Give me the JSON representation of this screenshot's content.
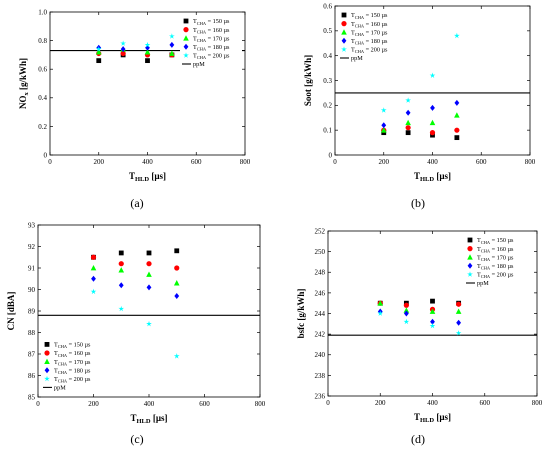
{
  "chart_data": [
    {
      "type": "scatter",
      "caption": "(a)",
      "xlabel_main": "T",
      "xlabel_sub": "HLD",
      "xlabel_unit": "[µs]",
      "ylabel_main": "NO",
      "ylabel_sub": "x",
      "ylabel_unit": "[g/kWh]",
      "xlim": [
        0,
        800
      ],
      "ylim": [
        0,
        1.0
      ],
      "xticks": [
        0,
        200,
        400,
        600,
        800
      ],
      "yticks": [
        0,
        0.2,
        0.4,
        0.6,
        0.8,
        1.0
      ],
      "ytick_labels": [
        "0",
        "0.2",
        "0.4",
        "0.6",
        "0.8",
        "1.0"
      ],
      "x": [
        200,
        300,
        400,
        500
      ],
      "series": [
        {
          "name": "T",
          "sub": "CHA",
          "suffix": " = 150 µs",
          "marker": "square",
          "color": "#000000",
          "values": [
            0.66,
            0.7,
            0.66,
            0.7
          ]
        },
        {
          "name": "T",
          "sub": "CHA",
          "suffix": " = 160 µs",
          "marker": "circle",
          "color": "#ff0000",
          "values": [
            0.71,
            0.71,
            0.7,
            0.7
          ]
        },
        {
          "name": "T",
          "sub": "CHA",
          "suffix": " = 170 µs",
          "marker": "triangle",
          "color": "#00ff00",
          "values": [
            0.72,
            0.74,
            0.72,
            0.71
          ]
        },
        {
          "name": "T",
          "sub": "CHA",
          "suffix": " = 180 µs",
          "marker": "diamond",
          "color": "#0000ff",
          "values": [
            0.75,
            0.74,
            0.75,
            0.77
          ]
        },
        {
          "name": "T",
          "sub": "CHA",
          "suffix": " = 200 µs",
          "marker": "star",
          "color": "#00ffff",
          "values": [
            0.74,
            0.78,
            0.77,
            0.83
          ]
        }
      ],
      "hline": {
        "name": "ppM",
        "value": 0.73
      },
      "legend": "top-right"
    },
    {
      "type": "scatter",
      "caption": "(b)",
      "xlabel_main": "T",
      "xlabel_sub": "HLD",
      "xlabel_unit": "[µs]",
      "ylabel_main": "Soot",
      "ylabel_sub": "",
      "ylabel_unit": "[g/kWh]",
      "xlim": [
        0,
        800
      ],
      "ylim": [
        0,
        0.6
      ],
      "xticks": [
        0,
        200,
        400,
        600,
        800
      ],
      "yticks": [
        0,
        0.1,
        0.2,
        0.3,
        0.4,
        0.5,
        0.6
      ],
      "ytick_labels": [
        "0",
        "0.1",
        "0.2",
        "0.3",
        "0.4",
        "0.5",
        "0.6"
      ],
      "x": [
        200,
        300,
        400,
        500
      ],
      "series": [
        {
          "name": "T",
          "sub": "CHA",
          "suffix": " = 150 µs",
          "marker": "square",
          "color": "#000000",
          "values": [
            0.09,
            0.09,
            0.08,
            0.07
          ]
        },
        {
          "name": "T",
          "sub": "CHA",
          "suffix": " = 160 µs",
          "marker": "circle",
          "color": "#ff0000",
          "values": [
            0.1,
            0.11,
            0.09,
            0.1
          ]
        },
        {
          "name": "T",
          "sub": "CHA",
          "suffix": " = 170 µs",
          "marker": "triangle",
          "color": "#00ff00",
          "values": [
            0.1,
            0.13,
            0.13,
            0.16
          ]
        },
        {
          "name": "T",
          "sub": "CHA",
          "suffix": " = 180 µs",
          "marker": "diamond",
          "color": "#0000ff",
          "values": [
            0.12,
            0.17,
            0.19,
            0.21
          ]
        },
        {
          "name": "T",
          "sub": "CHA",
          "suffix": " = 200 µs",
          "marker": "star",
          "color": "#00ffff",
          "values": [
            0.18,
            0.22,
            0.32,
            0.48
          ]
        }
      ],
      "hline": {
        "name": "ppM",
        "value": 0.25
      },
      "legend": "top-left"
    },
    {
      "type": "scatter",
      "caption": "(c)",
      "xlabel_main": "T",
      "xlabel_sub": "HLD",
      "xlabel_unit": "[µs]",
      "ylabel_main": "CN",
      "ylabel_sub": "",
      "ylabel_unit": "[dBA]",
      "xlim": [
        0,
        800
      ],
      "ylim": [
        85,
        93
      ],
      "xticks": [
        0,
        200,
        400,
        600,
        800
      ],
      "yticks": [
        85,
        86,
        87,
        88,
        89,
        90,
        91,
        92,
        93
      ],
      "ytick_labels": [
        "85",
        "86",
        "87",
        "88",
        "89",
        "90",
        "91",
        "92",
        "93"
      ],
      "x": [
        200,
        300,
        400,
        500
      ],
      "series": [
        {
          "name": "T",
          "sub": "CHA",
          "suffix": " = 150 µs",
          "marker": "square",
          "color": "#000000",
          "values": [
            91.5,
            91.7,
            91.7,
            91.8
          ]
        },
        {
          "name": "T",
          "sub": "CHA",
          "suffix": " = 160 µs",
          "marker": "circle",
          "color": "#ff0000",
          "values": [
            91.5,
            91.2,
            91.2,
            91.0
          ]
        },
        {
          "name": "T",
          "sub": "CHA",
          "suffix": " = 170 µs",
          "marker": "triangle",
          "color": "#00ff00",
          "values": [
            91.0,
            90.9,
            90.7,
            90.3
          ]
        },
        {
          "name": "T",
          "sub": "CHA",
          "suffix": " = 180 µs",
          "marker": "diamond",
          "color": "#0000ff",
          "values": [
            90.5,
            90.2,
            90.1,
            89.7
          ]
        },
        {
          "name": "T",
          "sub": "CHA",
          "suffix": " = 200 µs",
          "marker": "star",
          "color": "#00ffff",
          "values": [
            89.9,
            89.1,
            88.4,
            86.9
          ]
        }
      ],
      "hline": {
        "name": "ppM",
        "value": 88.8
      },
      "legend": "bottom-left"
    },
    {
      "type": "scatter",
      "caption": "(d)",
      "xlabel_main": "T",
      "xlabel_sub": "HLD",
      "xlabel_unit": "[µs]",
      "ylabel_main": "bsfc",
      "ylabel_sub": "",
      "ylabel_unit": "[g/kWh]",
      "xlim": [
        0,
        800
      ],
      "ylim": [
        236,
        252
      ],
      "xticks": [
        0,
        200,
        400,
        600,
        800
      ],
      "yticks": [
        236,
        238,
        240,
        242,
        244,
        246,
        248,
        250,
        252
      ],
      "ytick_labels": [
        "236",
        "238",
        "240",
        "242",
        "244",
        "246",
        "248",
        "250",
        "252"
      ],
      "x": [
        200,
        300,
        400,
        500
      ],
      "series": [
        {
          "name": "T",
          "sub": "CHA",
          "suffix": " = 150 µs",
          "marker": "square",
          "color": "#000000",
          "values": [
            245.0,
            245.0,
            245.2,
            245.0
          ]
        },
        {
          "name": "T",
          "sub": "CHA",
          "suffix": " = 160 µs",
          "marker": "circle",
          "color": "#ff0000",
          "values": [
            245.0,
            244.8,
            244.4,
            244.9
          ]
        },
        {
          "name": "T",
          "sub": "CHA",
          "suffix": " = 170 µs",
          "marker": "triangle",
          "color": "#00ff00",
          "values": [
            245.0,
            244.3,
            244.2,
            244.2
          ]
        },
        {
          "name": "T",
          "sub": "CHA",
          "suffix": " = 180 µs",
          "marker": "diamond",
          "color": "#0000ff",
          "values": [
            244.2,
            244.0,
            243.2,
            243.1
          ]
        },
        {
          "name": "T",
          "sub": "CHA",
          "suffix": " = 200 µs",
          "marker": "star",
          "color": "#00ffff",
          "values": [
            244.0,
            243.2,
            242.8,
            242.1
          ]
        }
      ],
      "hline": {
        "name": "ppM",
        "value": 241.9
      },
      "legend": "top-right"
    }
  ]
}
